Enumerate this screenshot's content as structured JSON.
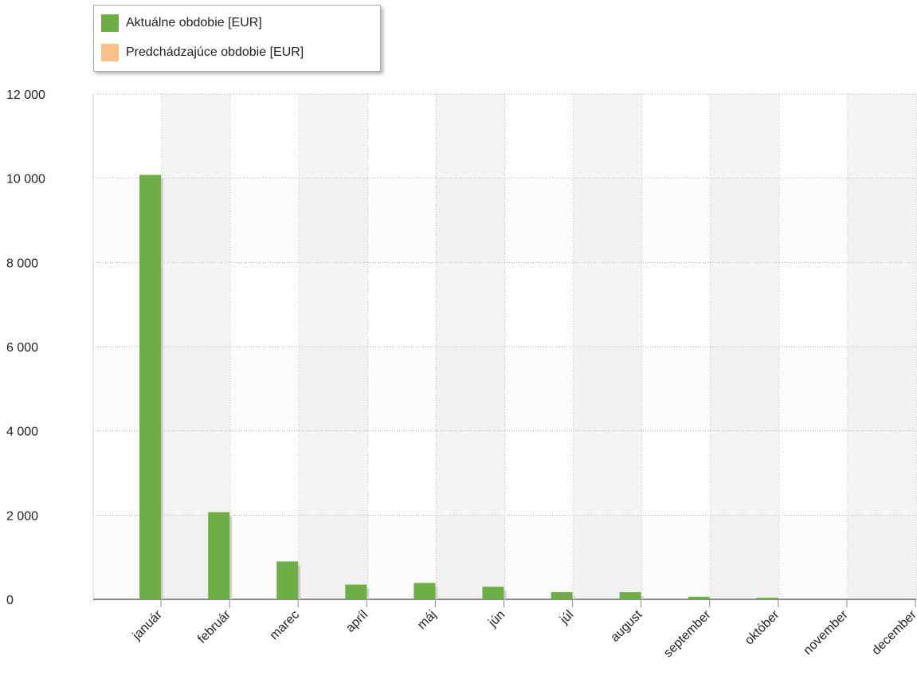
{
  "chart_data": {
    "type": "bar",
    "categories": [
      "január",
      "február",
      "marec",
      "apríl",
      "máj",
      "jún",
      "júl",
      "august",
      "september",
      "október",
      "november",
      "december"
    ],
    "series": [
      {
        "name": "Aktuálne obdobie [EUR]",
        "color": "#6fad46",
        "values": [
          10080,
          2070,
          900,
          350,
          390,
          300,
          170,
          170,
          60,
          40,
          0,
          0
        ]
      },
      {
        "name": "Predchádzajúce obdobie [EUR]",
        "color": "#fbc08a",
        "values": [
          0,
          0,
          0,
          0,
          0,
          0,
          0,
          0,
          0,
          0,
          0,
          0
        ]
      }
    ],
    "yticks": [
      "0",
      "2 000",
      "4 000",
      "6 000",
      "8 000",
      "10 000",
      "12 000"
    ],
    "ylim": [
      0,
      12000
    ],
    "grid": true,
    "legend_position": "top-left"
  }
}
